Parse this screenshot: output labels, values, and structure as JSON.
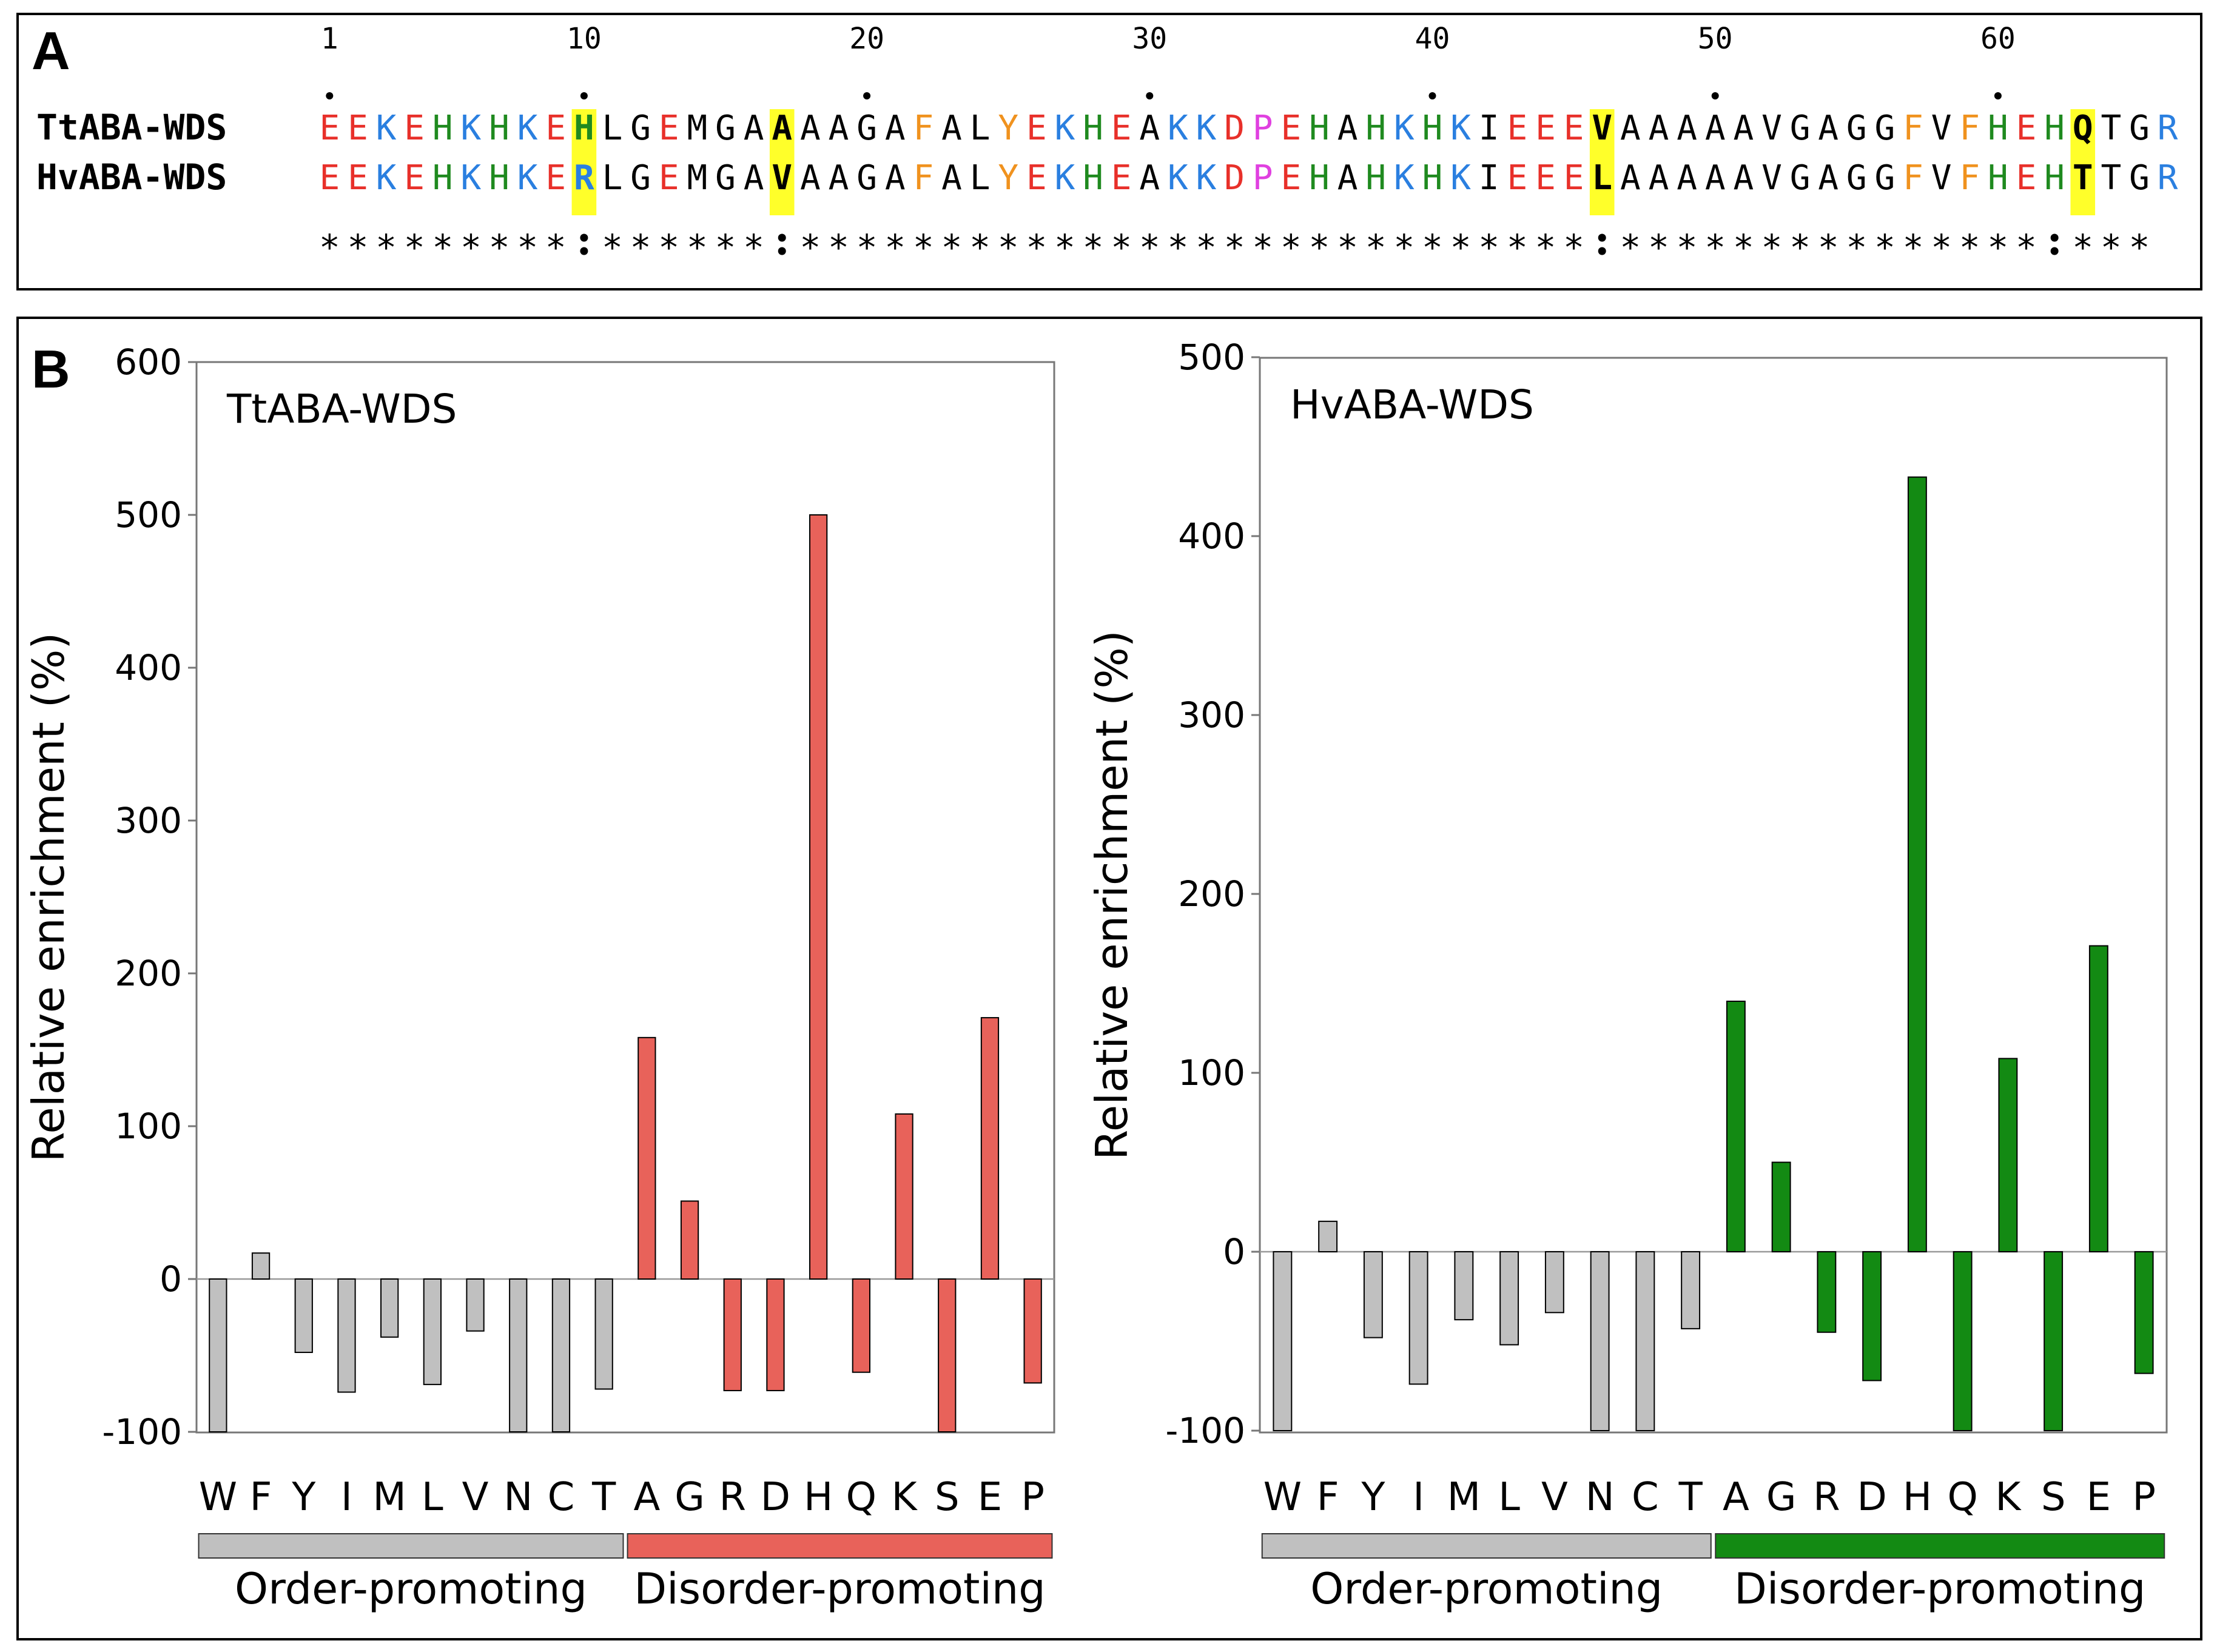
{
  "panelA": {
    "letter": "A",
    "ruler": [
      "1",
      "10",
      "20",
      "30",
      "40",
      "50",
      "60"
    ],
    "sequences": [
      {
        "name": "TtABA-WDS",
        "seq": "EEKEHKHKEHLGEMGAAAAGAFALYEKHEAKKDPEHAHKHKIEEEVAAAAAVGAGGFVFHEHQTGR"
      },
      {
        "name": "HvABA-WDS",
        "seq": "EEKEHKHKERLGEMGAVAAGAFALYEKHEAKKDPEHAHKHKIEEELAAAAAVGAGGFVFHEHTTGR"
      }
    ],
    "conservation": "*********:******:****************************:***************:***",
    "colors": {
      "acidic": "#e8302a",
      "basic": "#2a7fe0",
      "his": "#1f8a1f",
      "aromatic": "#f0921e",
      "pro": "#e040e0",
      "other": "#000000",
      "highlight": "#ffff2a"
    }
  },
  "panelB": {
    "letter": "B"
  },
  "chart_data": [
    {
      "type": "bar",
      "title": "TtABA-WDS",
      "ylabel": "Relative enrichment (%)",
      "xlabel": "",
      "categories": [
        "W",
        "F",
        "Y",
        "I",
        "M",
        "L",
        "V",
        "N",
        "C",
        "T",
        "A",
        "G",
        "R",
        "D",
        "H",
        "Q",
        "K",
        "S",
        "E",
        "P"
      ],
      "values": [
        -100,
        17,
        -48,
        -74,
        -38,
        -69,
        -34,
        -100,
        -100,
        -72,
        158,
        51,
        -73,
        -73,
        500,
        -61,
        108,
        -100,
        171,
        -68
      ],
      "ylim": [
        -100,
        600
      ],
      "yticks": [
        600,
        500,
        400,
        300,
        200,
        100,
        0,
        -100
      ],
      "ytick_labels": [
        "600",
        "500",
        "400",
        "300",
        "200",
        "100",
        "0",
        "-100"
      ],
      "groups": [
        {
          "label": "Order-promoting",
          "from": 0,
          "to": 9,
          "color": "#c0c0c0"
        },
        {
          "label": "Disorder-promoting",
          "from": 10,
          "to": 19,
          "color": "#e8625a"
        }
      ]
    },
    {
      "type": "bar",
      "title": "HvABA-WDS",
      "ylabel": "Relative enrichment (%)",
      "xlabel": "",
      "categories": [
        "W",
        "F",
        "Y",
        "I",
        "M",
        "L",
        "V",
        "N",
        "C",
        "T",
        "A",
        "G",
        "R",
        "D",
        "H",
        "Q",
        "K",
        "S",
        "E",
        "P"
      ],
      "values": [
        -100,
        17,
        -48,
        -74,
        -38,
        -52,
        -34,
        -100,
        -100,
        -43,
        140,
        50,
        -45,
        -72,
        433,
        -100,
        108,
        -100,
        171,
        -68
      ],
      "ylim": [
        -100,
        500
      ],
      "yticks": [
        500,
        400,
        300,
        200,
        100,
        0,
        -100
      ],
      "ytick_labels": [
        "500",
        "400",
        "300",
        "200",
        "100",
        "0",
        "-100"
      ],
      "groups": [
        {
          "label": "Order-promoting",
          "from": 0,
          "to": 9,
          "color": "#c0c0c0"
        },
        {
          "label": "Disorder-promoting",
          "from": 10,
          "to": 19,
          "color": "#138a13"
        }
      ]
    }
  ]
}
